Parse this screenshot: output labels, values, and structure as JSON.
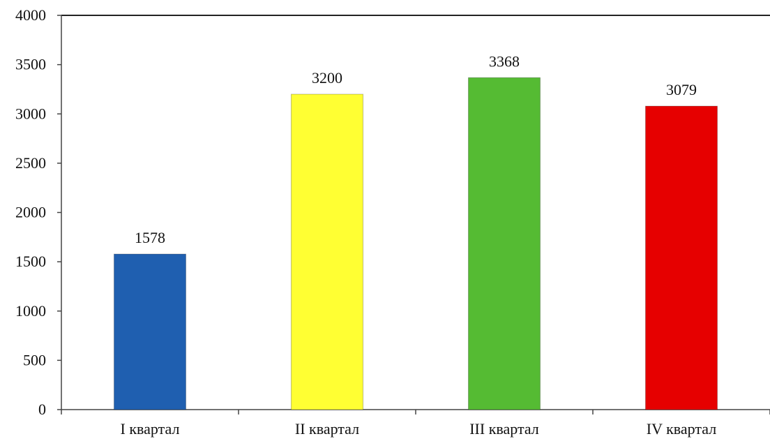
{
  "chart_data": {
    "type": "bar",
    "categories": [
      "I квартал",
      "II квартал",
      "III квартал",
      "IV квартал"
    ],
    "values": [
      1578,
      3200,
      3368,
      3079
    ],
    "data_labels": [
      "1578",
      "3200",
      "3368",
      "3079"
    ],
    "bar_colors": [
      "#1f5fb0",
      "#ffff33",
      "#55bb33",
      "#e60000"
    ],
    "ylim": [
      0,
      4000
    ],
    "yticks": [
      0,
      500,
      1000,
      1500,
      2000,
      2500,
      3000,
      3500,
      4000
    ],
    "grid": false,
    "title": "",
    "xlabel": "",
    "ylabel": ""
  }
}
